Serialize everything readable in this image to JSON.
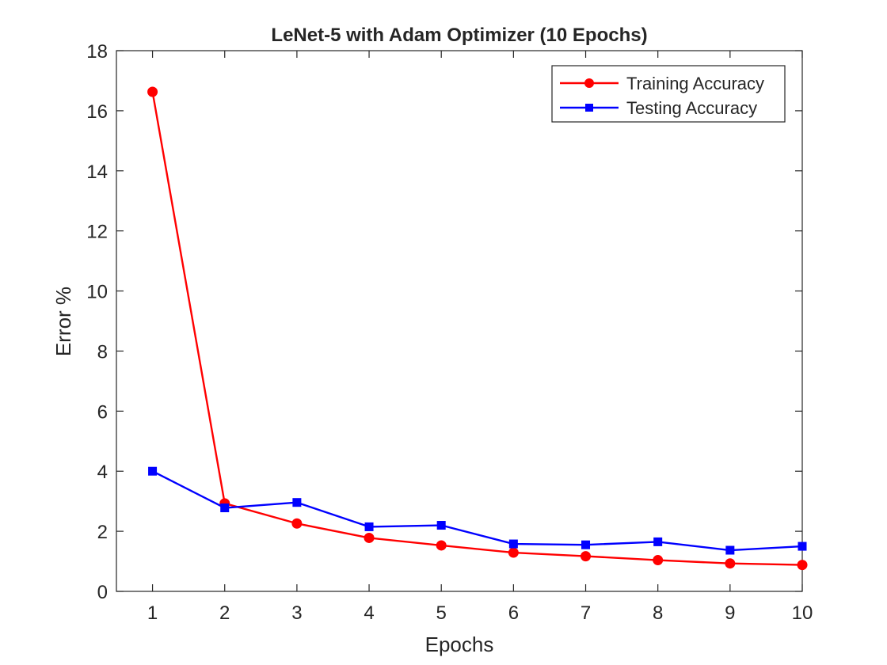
{
  "chart_data": {
    "type": "line",
    "title": "LeNet-5 with Adam Optimizer (10 Epochs)",
    "xlabel": "Epochs",
    "ylabel": "Error %",
    "x": [
      1,
      2,
      3,
      4,
      5,
      6,
      7,
      8,
      9,
      10
    ],
    "xlim": [
      0.5,
      10
    ],
    "ylim": [
      0,
      18
    ],
    "xticks": [
      1,
      2,
      3,
      4,
      5,
      6,
      7,
      8,
      9,
      10
    ],
    "yticks": [
      0,
      2,
      4,
      6,
      8,
      10,
      12,
      14,
      16,
      18
    ],
    "grid": false,
    "legend_position": "top-right",
    "series": [
      {
        "name": "Training Accuracy",
        "color": "#ff0000",
        "marker": "circle",
        "values": [
          16.63,
          2.93,
          2.26,
          1.78,
          1.53,
          1.29,
          1.17,
          1.04,
          0.93,
          0.88
        ]
      },
      {
        "name": "Testing Accuracy",
        "color": "#0000ff",
        "marker": "square",
        "values": [
          4.0,
          2.78,
          2.96,
          2.15,
          2.2,
          1.58,
          1.55,
          1.65,
          1.37,
          1.5
        ]
      }
    ]
  }
}
